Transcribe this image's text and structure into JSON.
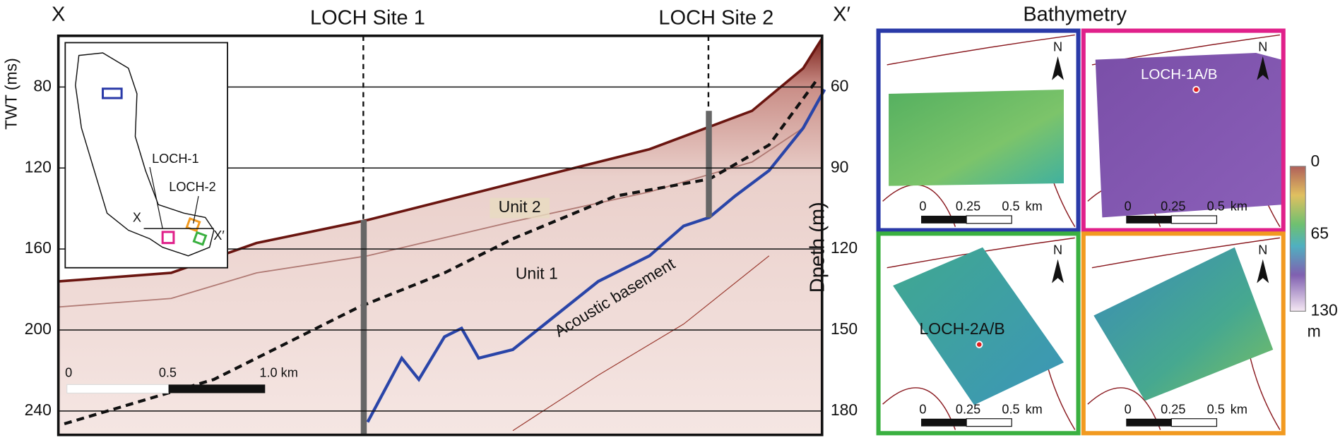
{
  "seismic_profile": {
    "left_label": "X",
    "right_label": "X′",
    "sites": [
      "LOCH Site 1",
      "LOCH Site 2"
    ],
    "twt_axis": {
      "title": "TWT (ms)",
      "ticks": [
        80,
        120,
        160,
        200,
        240
      ]
    },
    "depth_axis": {
      "title": "Dpeth (m)",
      "ticks": [
        60,
        90,
        120,
        150,
        180
      ]
    },
    "units": [
      "Unit 2",
      "Unit 1"
    ],
    "basement_label": "Acoustic basement",
    "scale_bar": [
      "0",
      "0.5",
      "1.0 km"
    ]
  },
  "inset_map": {
    "labels": [
      "LOCH-1",
      "LOCH-2",
      "X",
      "X′"
    ]
  },
  "bathymetry": {
    "title": "Bathymetry",
    "maps": [
      {
        "north": "N",
        "scale": [
          "0",
          "0.25",
          "0.5",
          "km"
        ]
      },
      {
        "label": "LOCH-1A/B",
        "north": "N",
        "scale": [
          "0",
          "0.25",
          "0.5",
          "km"
        ]
      },
      {
        "label": "LOCH-2A/B",
        "north": "N",
        "scale": [
          "0",
          "0.25",
          "0.5",
          "km"
        ]
      },
      {
        "north": "N",
        "scale": [
          "0",
          "0.25",
          "0.5",
          "km"
        ]
      }
    ],
    "colorbar": {
      "ticks": [
        0,
        65,
        130
      ],
      "unit": "m"
    }
  }
}
